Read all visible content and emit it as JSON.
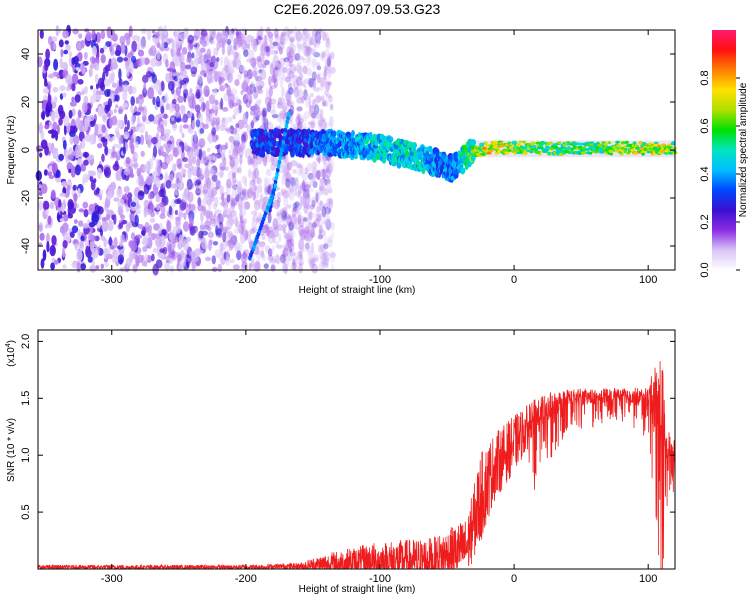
{
  "title": "C2E6.2026.097.09.53.G23",
  "chart_data": [
    {
      "type": "heatmap",
      "name": "spectrogram",
      "xlabel": "Height of straight line (km)",
      "ylabel": "Frequency (Hz)",
      "xlim": [
        -355,
        120
      ],
      "ylim": [
        -50,
        50
      ],
      "x_ticks": [
        -300,
        -200,
        -100,
        0,
        100
      ],
      "y_ticks": [
        -40,
        -20,
        0,
        20,
        40
      ],
      "colorbar": {
        "label": "Normalized spectral amplitude",
        "range": [
          0,
          1
        ],
        "ticks": [
          0.0,
          0.2,
          0.4,
          0.6,
          0.8
        ],
        "tick_labels": [
          "0.0",
          "0.2",
          "0.4",
          "0.6",
          "0.8"
        ],
        "colormap": [
          "#ffffff",
          "#d9c4f7",
          "#8a2be2",
          "#3a10d0",
          "#0048ff",
          "#00bfff",
          "#00e5c0",
          "#00e000",
          "#b0e000",
          "#ffe000",
          "#ff8000",
          "#ff1010",
          "#ff1b6f"
        ]
      },
      "noise_region_x": [
        -355,
        -150
      ],
      "signal_trace": [
        {
          "x": -195,
          "y": 3,
          "amp": 0.3
        },
        {
          "x": -180,
          "y": 3,
          "amp": 0.3
        },
        {
          "x": -160,
          "y": 3,
          "amp": 0.3
        },
        {
          "x": -140,
          "y": 3,
          "amp": 0.35
        },
        {
          "x": -120,
          "y": 2,
          "amp": 0.4
        },
        {
          "x": -100,
          "y": 1,
          "amp": 0.45
        },
        {
          "x": -80,
          "y": -2,
          "amp": 0.45
        },
        {
          "x": -60,
          "y": -5,
          "amp": 0.4
        },
        {
          "x": -45,
          "y": -8,
          "amp": 0.35
        },
        {
          "x": -35,
          "y": -2,
          "amp": 0.5
        },
        {
          "x": -20,
          "y": 1,
          "amp": 0.7
        },
        {
          "x": 0,
          "y": 1,
          "amp": 0.65
        },
        {
          "x": 20,
          "y": 0.8,
          "amp": 0.55
        },
        {
          "x": 40,
          "y": 0.6,
          "amp": 0.55
        },
        {
          "x": 60,
          "y": 0.8,
          "amp": 0.55
        },
        {
          "x": 80,
          "y": 0.8,
          "amp": 0.6
        },
        {
          "x": 100,
          "y": 0.8,
          "amp": 0.7
        },
        {
          "x": 110,
          "y": 0.8,
          "amp": 0.65
        },
        {
          "x": 120,
          "y": 1,
          "amp": 0.6
        }
      ],
      "diagonal_streaks": [
        {
          "x": [
            -182,
            -168
          ],
          "y": [
            -25,
            15
          ]
        },
        {
          "x": [
            -197,
            -178
          ],
          "y": [
            -45,
            -15
          ]
        }
      ]
    },
    {
      "type": "line",
      "name": "snr",
      "xlabel": "Height of straight line (km)",
      "ylabel": "SNR (10 * v/v)",
      "scale_label": "(x10",
      "scale_exp": "4",
      "scale_close": ")",
      "xlim": [
        -355,
        120
      ],
      "ylim": [
        0,
        2.1
      ],
      "x_ticks": [
        -300,
        -200,
        -100,
        0,
        100
      ],
      "y_ticks": [
        0.5,
        1.0,
        1.5,
        2.0
      ],
      "y_tick_labels": [
        "0.5",
        "1.0",
        "1.5",
        "2.0"
      ],
      "color": "#ee1c1c",
      "series_envelope": [
        {
          "x": -355,
          "base": 0.02,
          "amp": 0.02
        },
        {
          "x": -200,
          "base": 0.02,
          "amp": 0.02
        },
        {
          "x": -160,
          "base": 0.03,
          "amp": 0.03
        },
        {
          "x": -140,
          "base": 0.06,
          "amp": 0.1
        },
        {
          "x": -100,
          "base": 0.1,
          "amp": 0.18
        },
        {
          "x": -60,
          "base": 0.12,
          "amp": 0.2
        },
        {
          "x": -35,
          "base": 0.25,
          "amp": 0.25
        },
        {
          "x": -25,
          "base": 0.7,
          "amp": 0.4
        },
        {
          "x": -15,
          "base": 0.95,
          "amp": 0.3
        },
        {
          "x": 0,
          "base": 1.15,
          "amp": 0.25
        },
        {
          "x": 20,
          "base": 1.42,
          "amp": 0.15
        },
        {
          "x": 40,
          "base": 1.52,
          "amp": 0.08
        },
        {
          "x": 80,
          "base": 1.54,
          "amp": 0.06
        },
        {
          "x": 100,
          "base": 1.52,
          "amp": 0.1
        },
        {
          "x": 110,
          "base": 1.6,
          "amp": 0.5
        },
        {
          "x": 113,
          "base": 1.1,
          "amp": 0.15
        },
        {
          "x": 120,
          "base": 1.1,
          "amp": 0.1
        }
      ]
    }
  ]
}
